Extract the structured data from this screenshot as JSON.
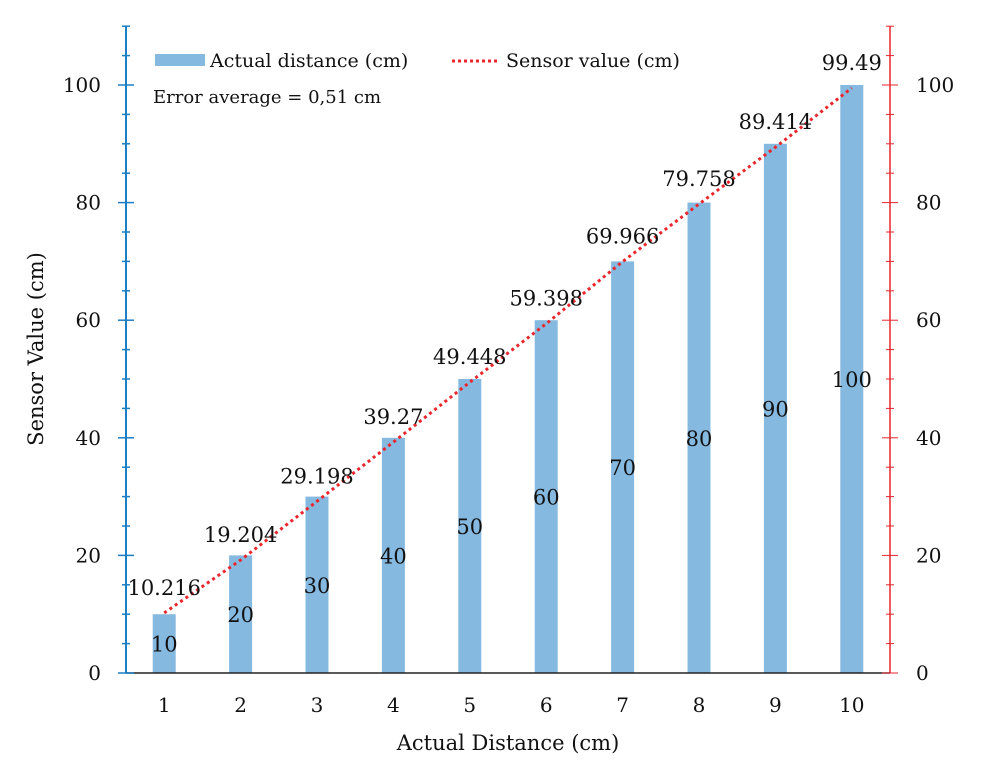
{
  "chart_data": {
    "type": "bar",
    "title": "",
    "xlabel": "Actual Distance (cm)",
    "ylabel": "Sensor Value (cm)",
    "categories": [
      "1",
      "2",
      "3",
      "4",
      "5",
      "6",
      "7",
      "8",
      "9",
      "10"
    ],
    "ylim": [
      0,
      110
    ],
    "yticks": [
      "0",
      "20",
      "40",
      "60",
      "80",
      "100"
    ],
    "y2lim": [
      0,
      110
    ],
    "y2ticks": [
      "0",
      "20",
      "40",
      "60",
      "80",
      "100"
    ],
    "grid": false,
    "legend_position": "top-left",
    "series": [
      {
        "name": "Actual distance (cm)",
        "kind": "bar",
        "axis": "left",
        "color": "#86b9e0",
        "values": [
          10,
          20,
          30,
          40,
          50,
          60,
          70,
          80,
          90,
          100
        ],
        "labels": [
          "10",
          "20",
          "30",
          "40",
          "50",
          "60",
          "70",
          "80",
          "90",
          "100"
        ]
      },
      {
        "name": "Sensor value (cm)",
        "kind": "line",
        "style": "dotted",
        "axis": "right",
        "color": "#e8262c",
        "values": [
          10.216,
          19.204,
          29.198,
          39.27,
          49.448,
          59.398,
          69.966,
          79.758,
          89.414,
          99.49
        ],
        "labels": [
          "10.216",
          "19.204",
          "29.198",
          "39.27",
          "49.448",
          "59.398",
          "69.966",
          "79.758",
          "89.414",
          "99.49"
        ]
      }
    ],
    "annotations": [
      "Error average = 0,51 cm"
    ],
    "left_axis_color": "#1a7fc4",
    "right_axis_color": "#e8262c"
  }
}
